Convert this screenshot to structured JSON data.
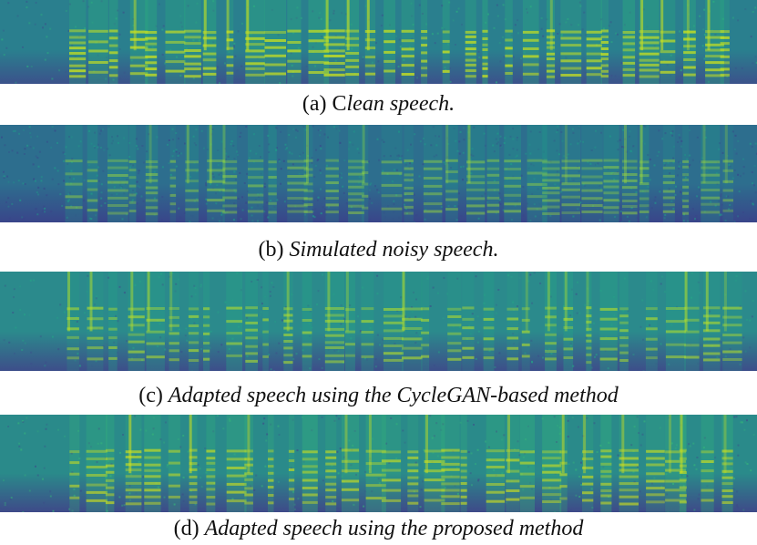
{
  "panels": [
    {
      "id": "a",
      "label_prefix": "(a) C",
      "label_text": "lean speech.",
      "colors": {
        "floor": "#2a7f8e",
        "mid": "#2bb07f",
        "peak": "#c8e020",
        "low": "#3b528b"
      },
      "variant": "clean"
    },
    {
      "id": "b",
      "label_prefix": "(b)",
      "label_text": "Simulated noisy speech.",
      "colors": {
        "floor": "#2d6e8e",
        "mid": "#1f9e89",
        "peak": "#a0da39",
        "low": "#39458a"
      },
      "variant": "noisy"
    },
    {
      "id": "c",
      "label_prefix": "(c)",
      "label_text": "Adapted speech using the CycleGAN-based method",
      "colors": {
        "floor": "#2b8a8c",
        "mid": "#25a586",
        "peak": "#b5de2b",
        "low": "#3d4e8a"
      },
      "variant": "cyclegan"
    },
    {
      "id": "d",
      "label_prefix": "(d)",
      "label_text": "Adapted speech using the proposed method",
      "colors": {
        "floor": "#2a8a8a",
        "mid": "#35b779",
        "peak": "#d4e21a",
        "low": "#3e4a89"
      },
      "variant": "proposed"
    }
  ]
}
